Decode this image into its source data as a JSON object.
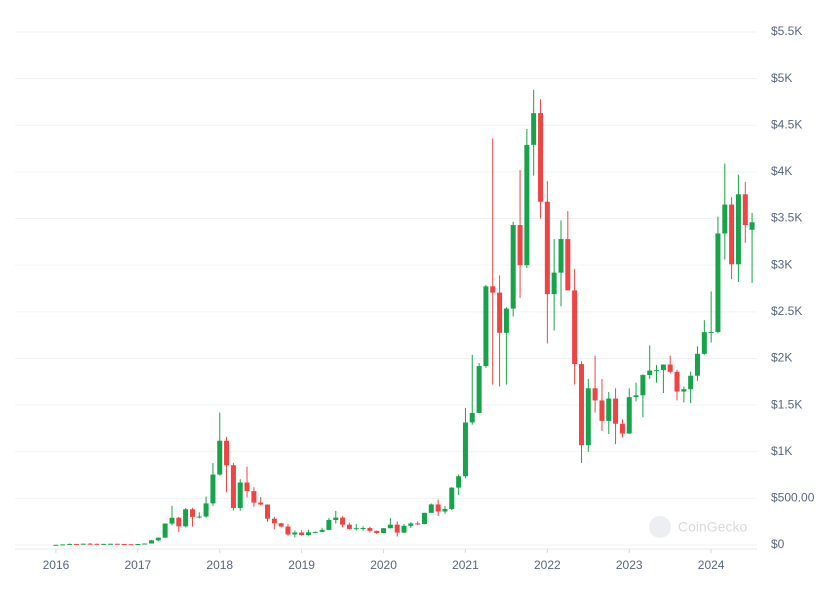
{
  "chart_data": {
    "type": "candlestick",
    "up_color": "#16a34a",
    "down_color": "#ef4444",
    "grid": true,
    "watermark": "CoinGecko",
    "xlim": [
      2015.5,
      2024.56
    ],
    "xticks": [
      2016,
      2017,
      2018,
      2019,
      2020,
      2021,
      2022,
      2023,
      2024
    ],
    "ylim": [
      0,
      5500
    ],
    "yticks": [
      {
        "value": 0,
        "label": "$0"
      },
      {
        "value": 500,
        "label": "$500.00"
      },
      {
        "value": 1000,
        "label": "$1K"
      },
      {
        "value": 1500,
        "label": "$1.5K"
      },
      {
        "value": 2000,
        "label": "$2K"
      },
      {
        "value": 2500,
        "label": "$2.5K"
      },
      {
        "value": 3000,
        "label": "$3K"
      },
      {
        "value": 3500,
        "label": "$3.5K"
      },
      {
        "value": 4000,
        "label": "$4K"
      },
      {
        "value": 4500,
        "label": "$4.5K"
      },
      {
        "value": 5000,
        "label": "$5K"
      },
      {
        "value": 5500,
        "label": "$5.5K"
      }
    ],
    "x": [
      2016,
      2016.083,
      2016.167,
      2016.25,
      2016.333,
      2016.417,
      2016.5,
      2016.583,
      2016.667,
      2016.75,
      2016.833,
      2016.917,
      2017,
      2017.083,
      2017.167,
      2017.25,
      2017.333,
      2017.417,
      2017.5,
      2017.583,
      2017.667,
      2017.75,
      2017.833,
      2017.917,
      2018,
      2018.083,
      2018.167,
      2018.25,
      2018.333,
      2018.417,
      2018.5,
      2018.583,
      2018.667,
      2018.75,
      2018.833,
      2018.917,
      2019,
      2019.083,
      2019.167,
      2019.25,
      2019.333,
      2019.417,
      2019.5,
      2019.583,
      2019.667,
      2019.75,
      2019.833,
      2019.917,
      2020,
      2020.083,
      2020.167,
      2020.25,
      2020.333,
      2020.417,
      2020.5,
      2020.583,
      2020.667,
      2020.75,
      2020.833,
      2020.917,
      2021,
      2021.083,
      2021.167,
      2021.25,
      2021.333,
      2021.417,
      2021.5,
      2021.583,
      2021.667,
      2021.75,
      2021.833,
      2021.917,
      2022,
      2022.083,
      2022.167,
      2022.25,
      2022.333,
      2022.417,
      2022.5,
      2022.583,
      2022.667,
      2022.75,
      2022.833,
      2022.917,
      2023,
      2023.083,
      2023.167,
      2023.25,
      2023.333,
      2023.417,
      2023.5,
      2023.583,
      2023.667,
      2023.75,
      2023.833,
      2023.917,
      2024,
      2024.083,
      2024.167,
      2024.25,
      2024.333,
      2024.417,
      2024.5
    ],
    "open": [
      0.93,
      2.2,
      6.3,
      11.4,
      8.8,
      14,
      12.5,
      11.8,
      11.9,
      13.2,
      10.9,
      8.2,
      8,
      10.7,
      15.9,
      50,
      79,
      230,
      292,
      200,
      383,
      302,
      305,
      446,
      755,
      1118,
      855,
      397,
      670,
      578,
      455,
      434,
      282,
      233,
      198,
      113,
      134,
      107,
      136,
      141,
      162,
      268,
      294,
      218,
      172,
      180,
      182,
      152,
      129,
      180,
      218,
      133,
      206,
      231,
      225,
      345,
      435,
      359,
      386,
      615,
      737,
      1314,
      1416,
      1918,
      2773,
      2706,
      2275,
      2535,
      3430,
      3000,
      4290,
      4630,
      3680,
      2690,
      2920,
      3280,
      2730,
      1940,
      1070,
      1680,
      1550,
      1330,
      1570,
      1300,
      1196,
      1585,
      1605,
      1822,
      1870,
      1875,
      1935,
      1857,
      1645,
      1670,
      1815,
      2050,
      2282,
      2283,
      3340,
      3650,
      3010,
      3760,
      3380
    ],
    "high": [
      2.8,
      6.7,
      15.3,
      12,
      14.5,
      21.5,
      14.9,
      12.1,
      14.4,
      13.6,
      11.2,
      8.6,
      11.3,
      16,
      55,
      80,
      232,
      420,
      300,
      395,
      400,
      350,
      520,
      880,
      1420,
      1160,
      880,
      705,
      840,
      620,
      515,
      436,
      300,
      238,
      225,
      155,
      160,
      165,
      145,
      185,
      290,
      365,
      310,
      240,
      225,
      200,
      195,
      155,
      180,
      288,
      253,
      226,
      245,
      253,
      345,
      445,
      488,
      420,
      620,
      755,
      1470,
      2040,
      1950,
      2790,
      4360,
      2890,
      2550,
      3465,
      4020,
      4460,
      4880,
      4780,
      3900,
      3280,
      3480,
      3580,
      2960,
      1970,
      1780,
      2030,
      1780,
      1640,
      1680,
      1350,
      1680,
      1740,
      1830,
      2140,
      1930,
      1930,
      2030,
      1880,
      1700,
      1860,
      2130,
      2410,
      2720,
      3520,
      4090,
      3730,
      3970,
      3890,
      3560
    ],
    "low": [
      0.93,
      2.1,
      6.2,
      7,
      8.5,
      11.5,
      10.1,
      10.3,
      11.3,
      10.3,
      7.9,
      6.9,
      7.9,
      10.5,
      15.4,
      43,
      77,
      210,
      140,
      190,
      197,
      285,
      292,
      420,
      745,
      565,
      370,
      366,
      510,
      410,
      425,
      250,
      168,
      190,
      100,
      82,
      100,
      101,
      126,
      140,
      158,
      230,
      190,
      165,
      155,
      155,
      135,
      117,
      127,
      176,
      90,
      126,
      182,
      215,
      222,
      345,
      310,
      335,
      375,
      535,
      715,
      1290,
      1420,
      1900,
      1720,
      1700,
      1720,
      2450,
      2650,
      2970,
      3960,
      3500,
      2160,
      2300,
      2560,
      2780,
      1720,
      880,
      1000,
      1420,
      1220,
      1190,
      1080,
      1150,
      1190,
      1540,
      1370,
      1780,
      1740,
      1630,
      1840,
      1550,
      1530,
      1520,
      1760,
      2040,
      2170,
      2270,
      3060,
      2850,
      2820,
      3240,
      2810
    ],
    "close": [
      2.2,
      6.3,
      11.4,
      8.8,
      14,
      12.5,
      11.8,
      11.9,
      13.2,
      10.9,
      8.2,
      8,
      10.7,
      15.9,
      50,
      79,
      230,
      292,
      200,
      383,
      302,
      305,
      446,
      755,
      1118,
      855,
      397,
      670,
      578,
      455,
      434,
      282,
      233,
      198,
      113,
      134,
      107,
      136,
      141,
      162,
      268,
      294,
      218,
      172,
      180,
      182,
      152,
      129,
      180,
      218,
      133,
      206,
      231,
      225,
      345,
      435,
      359,
      386,
      615,
      737,
      1314,
      1416,
      1918,
      2773,
      2706,
      2275,
      2535,
      3430,
      3000,
      4290,
      4630,
      3680,
      2690,
      2920,
      3280,
      2730,
      1940,
      1070,
      1680,
      1550,
      1330,
      1570,
      1300,
      1196,
      1585,
      1605,
      1822,
      1870,
      1875,
      1935,
      1857,
      1645,
      1670,
      1815,
      2050,
      2282,
      2283,
      3340,
      3650,
      3010,
      3760,
      3430,
      3460
    ]
  }
}
